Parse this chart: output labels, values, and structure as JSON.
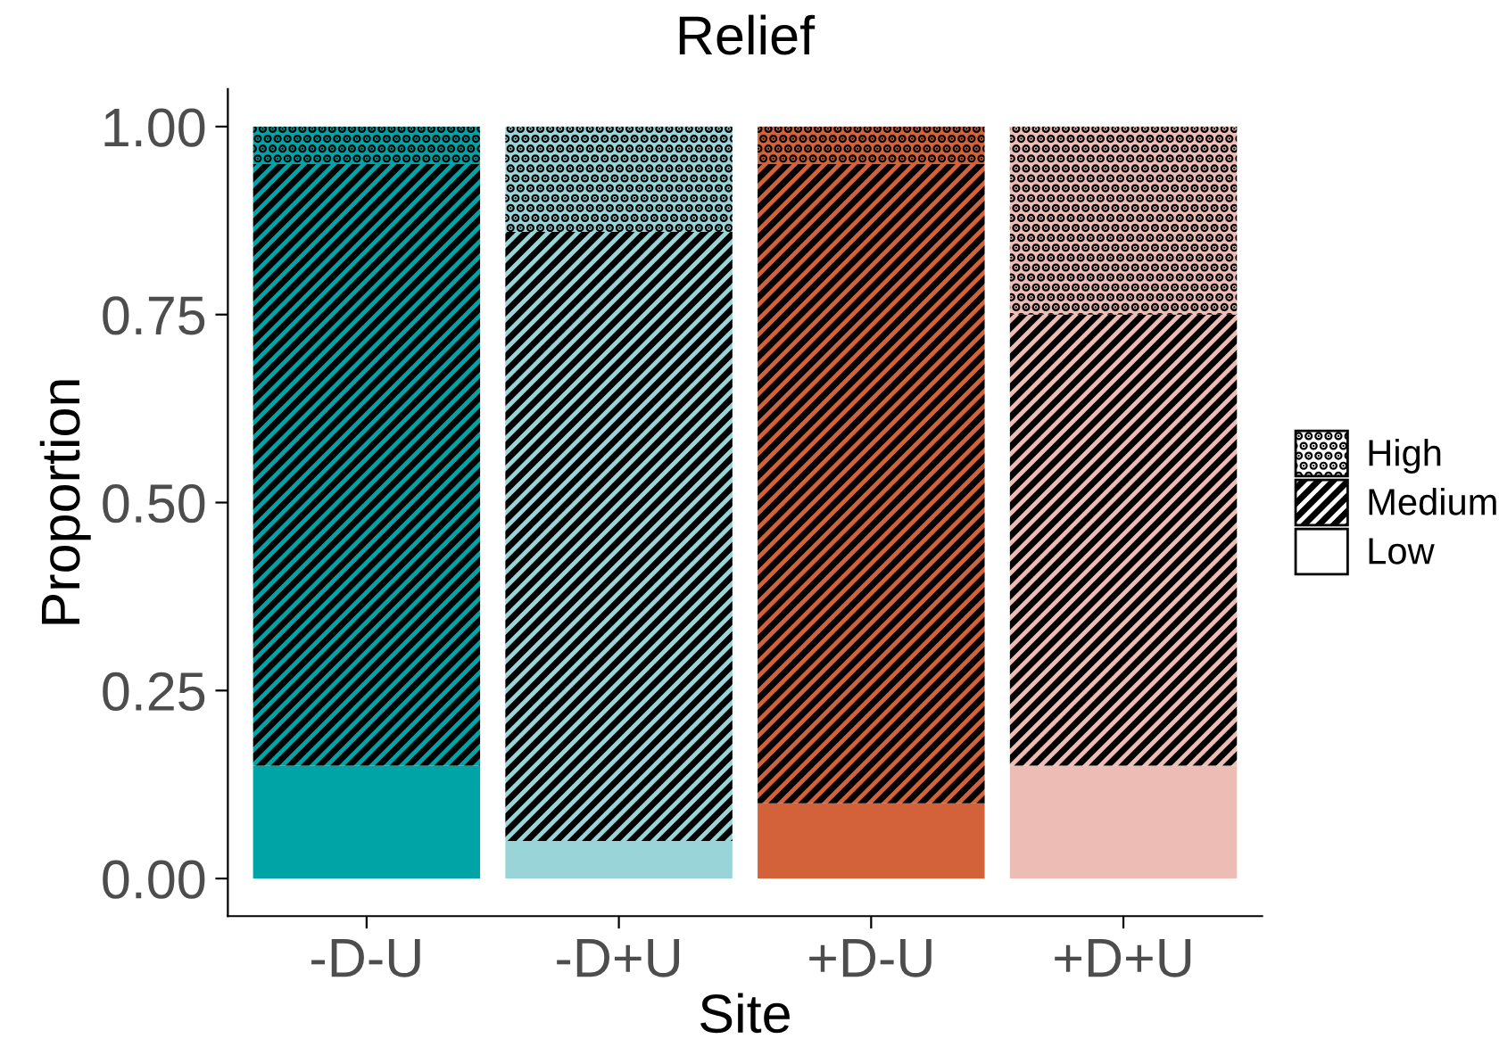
{
  "chart_data": {
    "type": "bar",
    "title": "Relief",
    "xlabel": "Site",
    "ylabel": "Proportion",
    "categories": [
      "-D-U",
      "-D+U",
      "+D-U",
      "+D+U"
    ],
    "stacked": true,
    "series": [
      {
        "name": "Low",
        "colors": [
          "#00a4a6",
          "#99d5d8",
          "#d3623a",
          "#edbdb5"
        ],
        "values": [
          0.15,
          0.05,
          0.1,
          0.15
        ]
      },
      {
        "name": "Medium",
        "colors": [
          "#00a4a6",
          "#99d5d8",
          "#d3623a",
          "#edbdb5"
        ],
        "values": [
          0.8,
          0.81,
          0.85,
          0.6
        ]
      },
      {
        "name": "High",
        "colors": [
          "#00a4a6",
          "#99d5d8",
          "#d3623a",
          "#edbdb5"
        ],
        "values": [
          0.05,
          0.14,
          0.05,
          0.25
        ]
      }
    ],
    "ylim": [
      -0.05,
      1.05
    ],
    "yticks": [
      {
        "value": 0,
        "label": "0.00"
      },
      {
        "value": 0.25,
        "label": "0.25"
      },
      {
        "value": 0.5,
        "label": "0.50"
      },
      {
        "value": 0.75,
        "label": "0.75"
      },
      {
        "value": 1,
        "label": "1.00"
      }
    ],
    "grid": false,
    "legend": "right"
  }
}
